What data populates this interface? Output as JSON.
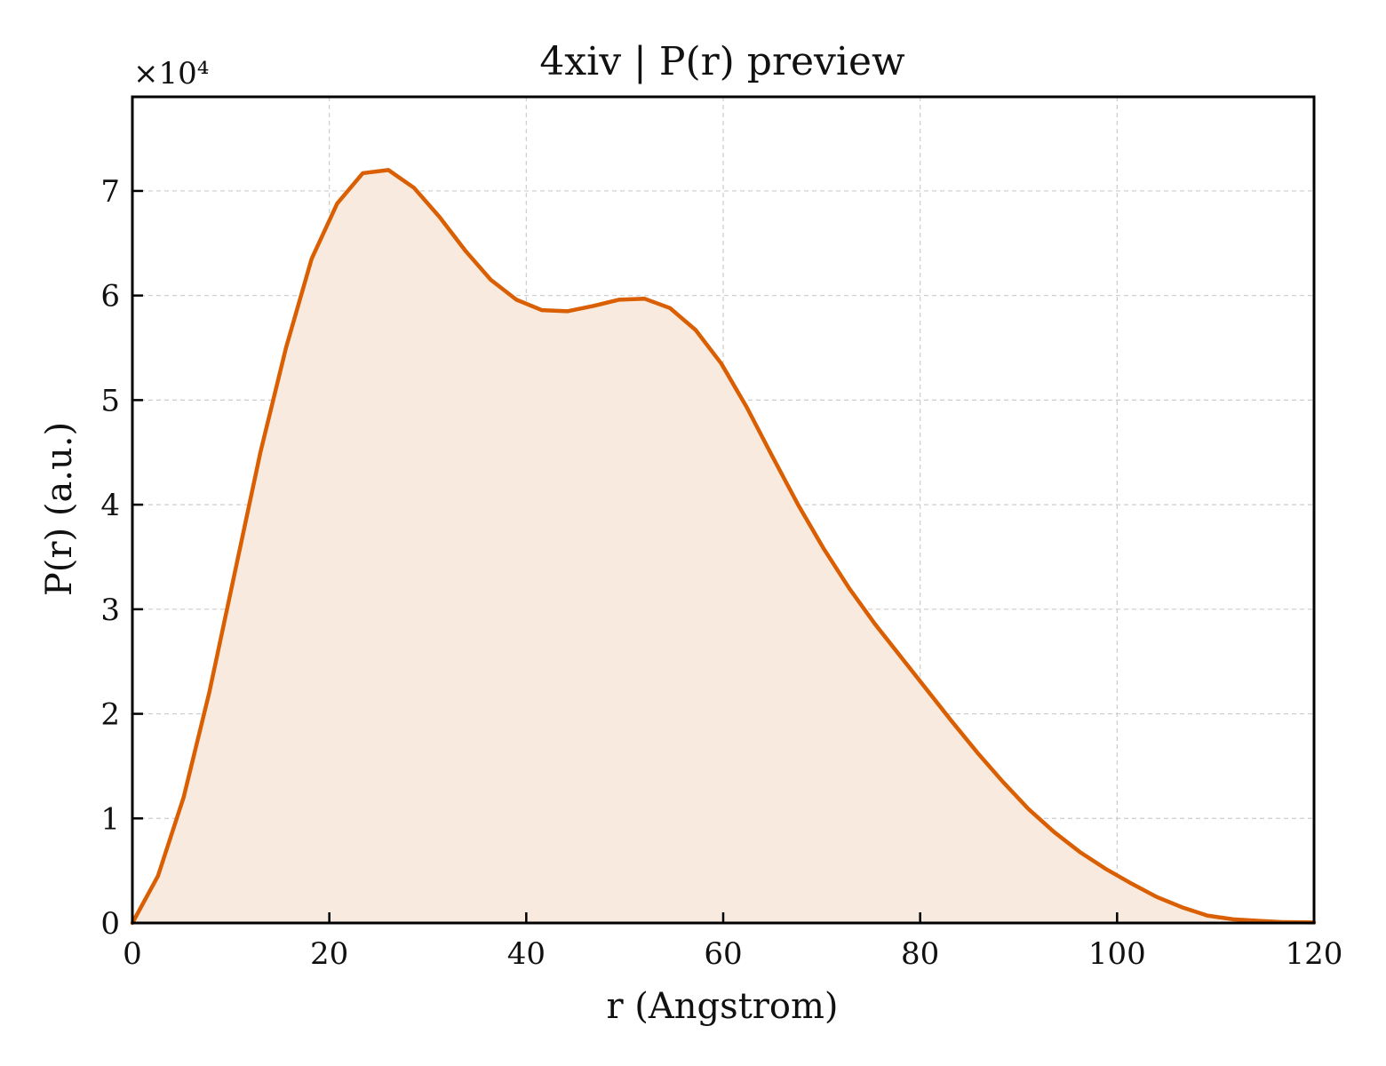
{
  "chart_data": {
    "type": "area",
    "title": "4xiv | P(r) preview",
    "xlabel": "r (Angstrom)",
    "ylabel": "P(r) (a.u.)",
    "y_scale_label": "×10⁴",
    "y_multiplier": 10000,
    "xlim": [
      0,
      120
    ],
    "ylim": [
      0,
      7.9
    ],
    "x_ticks": [
      0,
      20,
      40,
      60,
      80,
      100,
      120
    ],
    "y_ticks": [
      0,
      1,
      2,
      3,
      4,
      5,
      6,
      7
    ],
    "grid": true,
    "legend": "none",
    "line_color": "#d95f02",
    "fill_color": "#f9eadf",
    "series": [
      {
        "x": [
          0,
          2.6,
          5.2,
          7.8,
          10.4,
          13.0,
          15.6,
          18.2,
          20.8,
          23.4,
          26.0,
          28.6,
          31.2,
          33.8,
          36.4,
          39.0,
          41.6,
          44.2,
          46.8,
          49.4,
          52.0,
          54.6,
          57.2,
          59.8,
          62.4,
          65.0,
          67.6,
          70.2,
          72.8,
          75.4,
          78.0,
          80.6,
          83.2,
          85.8,
          88.4,
          91.0,
          93.6,
          96.2,
          98.8,
          101.4,
          104.0,
          106.6,
          109.2,
          111.8,
          114.4,
          117.0,
          120.0
        ],
        "y": [
          0,
          0.45,
          1.2,
          2.2,
          3.35,
          4.5,
          5.5,
          6.35,
          6.88,
          7.17,
          7.2,
          7.03,
          6.75,
          6.43,
          6.15,
          5.96,
          5.86,
          5.85,
          5.9,
          5.96,
          5.97,
          5.88,
          5.67,
          5.35,
          4.93,
          4.46,
          4.0,
          3.58,
          3.2,
          2.86,
          2.55,
          2.24,
          1.93,
          1.63,
          1.35,
          1.09,
          0.87,
          0.68,
          0.52,
          0.38,
          0.25,
          0.15,
          0.07,
          0.035,
          0.02,
          0.008,
          0.005
        ]
      }
    ]
  }
}
